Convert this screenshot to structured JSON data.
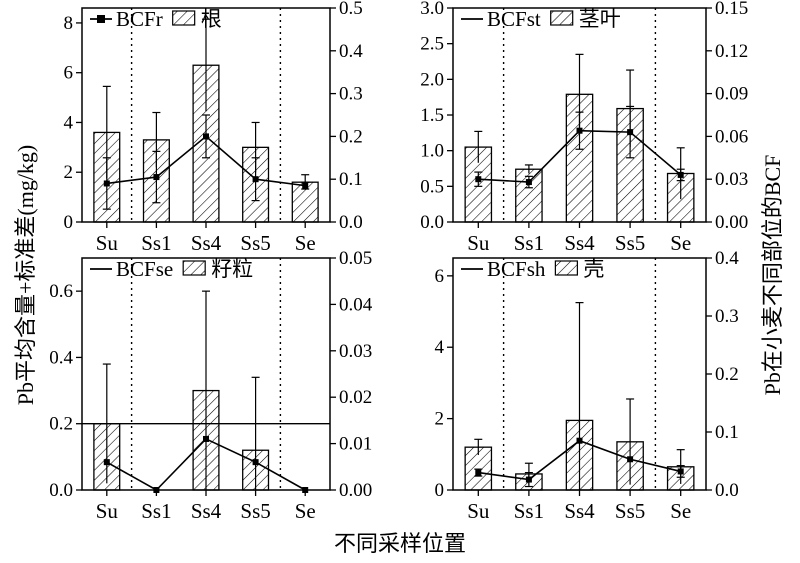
{
  "figure": {
    "xlabel": "不同采样位置",
    "ylabel_left": "Pb平均含量+标准差(mg/kg)",
    "ylabel_right": "Pb在小麦不同部位的BCF"
  },
  "chart_data": [
    {
      "type": "bar",
      "categories": [
        "Su",
        "Ss1",
        "Ss4",
        "Ss5",
        "Se"
      ],
      "bar_series": {
        "name": "根",
        "values": [
          3.6,
          3.3,
          6.3,
          3.0,
          1.6
        ],
        "errors": [
          1.85,
          1.1,
          1.85,
          1.0,
          0.3
        ]
      },
      "line_series": {
        "name": "BCFr",
        "values": [
          0.09,
          0.105,
          0.2,
          0.1,
          0.085
        ],
        "errors": [
          0.06,
          0.06,
          0.05,
          0.05,
          0.008
        ]
      },
      "ylim_left": [
        0,
        8.6
      ],
      "yticks_left": [
        "0",
        "2",
        "4",
        "6",
        "8"
      ],
      "ylim_right": [
        0,
        0.5
      ],
      "yticks_right": [
        "0.0",
        "0.1",
        "0.2",
        "0.3",
        "0.4",
        "0.5"
      ],
      "legend": "top-left",
      "grid": false
    },
    {
      "type": "bar",
      "categories": [
        "Su",
        "Ss1",
        "Ss4",
        "Ss5",
        "Se"
      ],
      "bar_series": {
        "name": "茎叶",
        "values": [
          1.05,
          0.74,
          1.79,
          1.59,
          0.68
        ],
        "errors": [
          0.22,
          0.06,
          0.56,
          0.54,
          0.36
        ]
      },
      "line_series": {
        "name": "BCFst",
        "values": [
          0.03,
          0.028,
          0.064,
          0.063,
          0.033
        ],
        "errors": [
          0.005,
          0.004,
          0.013,
          0.018,
          0.004
        ]
      },
      "ylim_left": [
        0,
        3.0
      ],
      "yticks_left": [
        "0.0",
        "0.5",
        "1.0",
        "1.5",
        "2.0",
        "2.5",
        "3.0"
      ],
      "ylim_right": [
        0,
        0.15
      ],
      "yticks_right": [
        "0.00",
        "0.03",
        "0.06",
        "0.09",
        "0.12",
        "0.15"
      ],
      "legend": "top-left",
      "grid": false
    },
    {
      "type": "bar",
      "categories": [
        "Su",
        "Ss1",
        "Ss4",
        "Ss5",
        "Se"
      ],
      "bar_series": {
        "name": "籽粒",
        "values": [
          0.2,
          0.0,
          0.3,
          0.12,
          0.0
        ],
        "errors": [
          0.18,
          0.0,
          0.3,
          0.22,
          0.0
        ]
      },
      "line_series": {
        "name": "BCFse",
        "values": [
          0.006,
          0.0,
          0.011,
          0.006,
          0.0
        ],
        "errors": [
          0.0,
          0.0,
          0.0,
          0.0,
          0.0
        ]
      },
      "reference_line_left": 0.2,
      "ylim_left": [
        0,
        0.7
      ],
      "yticks_left": [
        "0.0",
        "0.2",
        "0.4",
        "0.6"
      ],
      "ylim_right": [
        0,
        0.05
      ],
      "yticks_right": [
        "0.00",
        "0.01",
        "0.02",
        "0.03",
        "0.04",
        "0.05"
      ],
      "legend": "top-left",
      "grid": false
    },
    {
      "type": "bar",
      "categories": [
        "Su",
        "Ss1",
        "Ss4",
        "Ss5",
        "Se"
      ],
      "bar_series": {
        "name": "壳",
        "values": [
          1.2,
          0.45,
          1.95,
          1.35,
          0.65
        ],
        "errors": [
          0.22,
          0.3,
          3.3,
          1.2,
          0.48
        ]
      },
      "line_series": {
        "name": "BCFsh",
        "values": [
          0.03,
          0.018,
          0.085,
          0.053,
          0.032
        ],
        "errors": [
          0.006,
          0.012,
          0.0,
          0.0,
          0.01
        ]
      },
      "ylim_left": [
        0,
        6.5
      ],
      "yticks_left": [
        "0",
        "2",
        "4",
        "6"
      ],
      "ylim_right": [
        0,
        0.4
      ],
      "yticks_right": [
        "0.0",
        "0.1",
        "0.2",
        "0.3",
        "0.4"
      ],
      "legend": "top-left",
      "grid": false
    }
  ]
}
